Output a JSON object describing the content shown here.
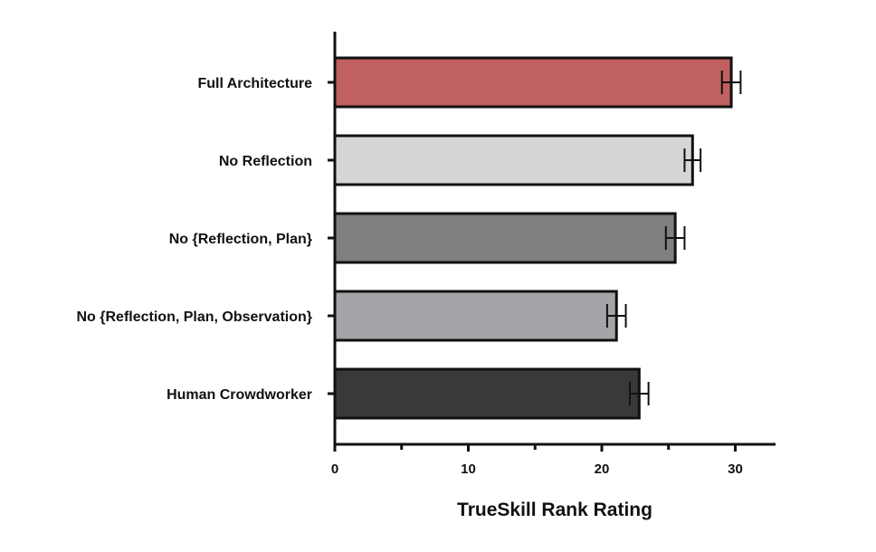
{
  "chart_data": {
    "type": "bar",
    "orientation": "horizontal",
    "title": "",
    "xlabel": "TrueSkill Rank Rating",
    "ylabel": "",
    "xlim": [
      0,
      33
    ],
    "xticks": [
      0,
      10,
      20,
      30
    ],
    "minor_xticks": [
      5,
      15,
      25
    ],
    "grid": false,
    "legend": "none",
    "categories": [
      "Full Architecture",
      "No Reflection",
      "No {Reflection, Plan}",
      "No {Reflection, Plan, Observation}",
      "Human Crowdworker"
    ],
    "values": [
      29.7,
      26.8,
      25.5,
      21.1,
      22.8
    ],
    "errors": [
      0.7,
      0.6,
      0.7,
      0.7,
      0.7
    ],
    "colors": [
      "#c06060",
      "#d6d6d6",
      "#7f7f7f",
      "#a3a3a8",
      "#393939"
    ]
  }
}
